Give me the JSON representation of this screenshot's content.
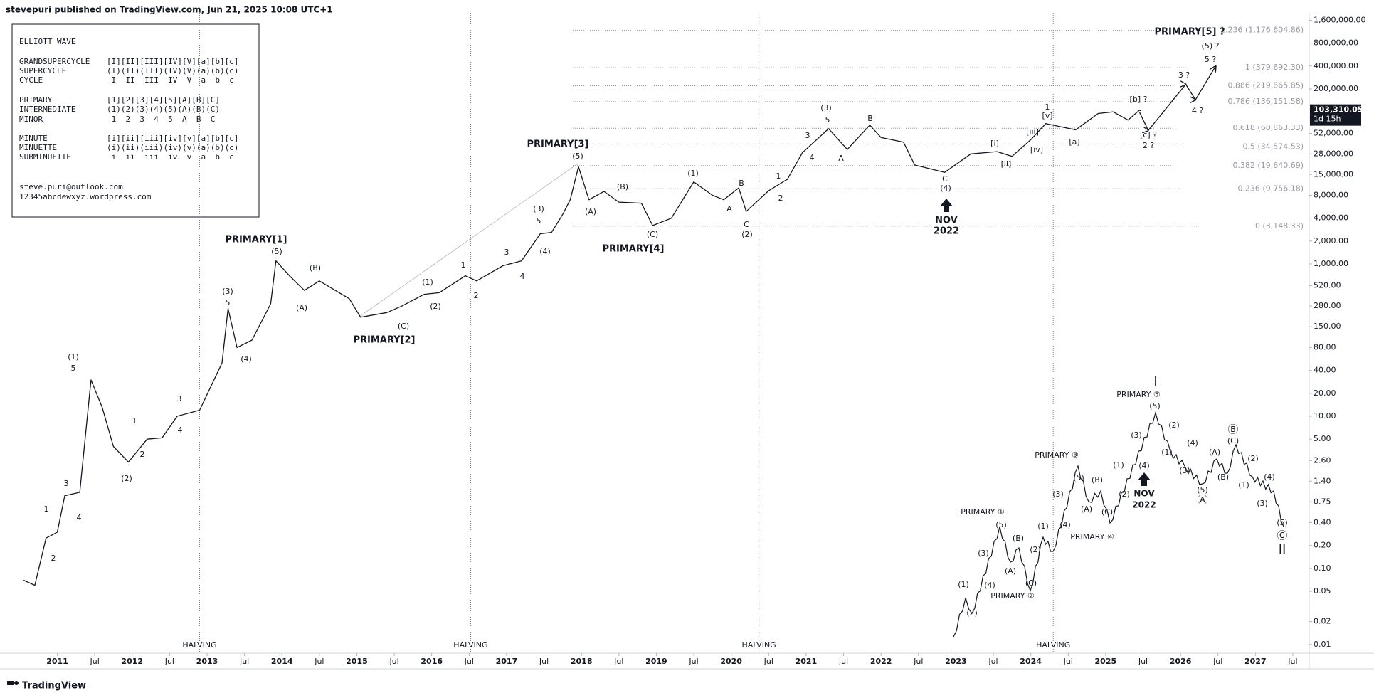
{
  "header": "stevepuri published on TradingView.com, Jun 21, 2025 10:08 UTC+1",
  "footer": "TradingView",
  "legend": {
    "title": "ELLIOTT WAVE",
    "rows": [
      [
        "GRANDSUPERCYCLE",
        "[I][II][III][IV][V][a][b][c]"
      ],
      [
        "SUPERCYCLE",
        "(I)(II)(III)(IV)(V)(a)(b)(c)"
      ],
      [
        "CYCLE",
        " I  II  III  IV  V  a  b  c"
      ],
      [
        "PRIMARY",
        "[1][2][3][4][5][A][B][C]"
      ],
      [
        "INTERMEDIATE",
        "(1)(2)(3)(4)(5)(A)(B)(C)"
      ],
      [
        "MINOR",
        " 1  2  3  4  5  A  B  C"
      ],
      [
        "MINUTE",
        "[i][ii][iii][iv][v][a][b][c]"
      ],
      [
        "MINUETTE",
        "(i)(ii)(iii)(iv)(v)(a)(b)(c)"
      ],
      [
        "SUBMINUETTE",
        " i  ii  iii  iv  v  a  b  c"
      ]
    ],
    "contact": [
      "steve.puri@outlook.com",
      "12345abcdewxyz.wordpress.com"
    ]
  },
  "chart_data": {
    "type": "line",
    "log_scale": true,
    "color": "#131722",
    "x": [
      2010.55,
      2010.7,
      2010.85,
      2011.0,
      2011.1,
      2011.3,
      2011.45,
      2011.6,
      2011.75,
      2011.95,
      2012.2,
      2012.4,
      2012.6,
      2012.9,
      2013.2,
      2013.28,
      2013.4,
      2013.6,
      2013.85,
      2013.92,
      2014.1,
      2014.3,
      2014.5,
      2014.9,
      2015.05,
      2015.4,
      2015.6,
      2015.9,
      2016.1,
      2016.45,
      2016.6,
      2016.95,
      2017.2,
      2017.45,
      2017.6,
      2017.75,
      2017.85,
      2017.96,
      2018.1,
      2018.3,
      2018.5,
      2018.8,
      2018.95,
      2019.2,
      2019.5,
      2019.75,
      2019.9,
      2020.1,
      2020.2,
      2020.5,
      2020.75,
      2020.95,
      2021.3,
      2021.55,
      2021.85,
      2022.0,
      2022.3,
      2022.45,
      2022.85,
      2023.2,
      2023.55,
      2023.75,
      2024.0,
      2024.2,
      2024.6,
      2024.9,
      2025.1,
      2025.3,
      2025.45,
      2025.47
    ],
    "values": [
      0.07,
      0.06,
      0.25,
      0.3,
      0.9,
      1.0,
      30,
      13,
      4,
      2.5,
      5,
      5.2,
      10,
      12,
      50,
      260,
      80,
      100,
      300,
      1100,
      700,
      450,
      600,
      350,
      200,
      230,
      280,
      400,
      420,
      700,
      600,
      950,
      1100,
      2500,
      2600,
      4500,
      7000,
      19000,
      7000,
      9000,
      6500,
      6300,
      3200,
      4000,
      12000,
      8000,
      7000,
      10000,
      4900,
      9200,
      13000,
      29000,
      60000,
      32000,
      67000,
      46000,
      40000,
      20000,
      16000,
      28000,
      30000,
      26000,
      43000,
      70000,
      58000,
      95000,
      100000,
      78000,
      105000,
      103310.05
    ],
    "projection_x": [
      2025.45,
      2025.57,
      2026.07,
      2026.2,
      2026.47
    ],
    "projection_values": [
      100000,
      57000,
      230000,
      144000,
      400000
    ],
    "last_price": {
      "value": 103310.05,
      "label": "103,310.05"
    },
    "countdown": "1d 15h",
    "xlim": [
      2010.33,
      2027.7
    ],
    "ylim": [
      0.0077,
      2000000
    ],
    "xticks": [
      2011,
      {
        "value": 2011.5,
        "label": "Jul"
      },
      2012,
      {
        "value": 2012.5,
        "label": "Jul"
      },
      2013,
      {
        "value": 2013.5,
        "label": "Jul"
      },
      2014,
      {
        "value": 2014.5,
        "label": "Jul"
      },
      2015,
      {
        "value": 2015.5,
        "label": "Jul"
      },
      2016,
      {
        "value": 2016.5,
        "label": "Jul"
      },
      2017,
      {
        "value": 2017.5,
        "label": "Jul"
      },
      2018,
      {
        "value": 2018.5,
        "label": "Jul"
      },
      2019,
      {
        "value": 2019.5,
        "label": "Jul"
      },
      2020,
      {
        "value": 2020.5,
        "label": "Jul"
      },
      2021,
      {
        "value": 2021.5,
        "label": "Jul"
      },
      2022,
      {
        "value": 2022.5,
        "label": "Jul"
      },
      2023,
      {
        "value": 2023.5,
        "label": "Jul"
      },
      2024,
      {
        "value": 2024.5,
        "label": "Jul"
      },
      2025,
      {
        "value": 2025.5,
        "label": "Jul"
      },
      2026,
      {
        "value": 2026.5,
        "label": "Jul"
      },
      2027,
      {
        "value": 2027.5,
        "label": "Jul"
      }
    ],
    "yticks": [
      {
        "value": 1600000,
        "label": "1,600,000.00"
      },
      {
        "value": 800000,
        "label": "800,000.00"
      },
      {
        "value": 400000,
        "label": "400,000.00"
      },
      {
        "value": 200000,
        "label": "200,000.00"
      },
      {
        "value": 52000,
        "label": "52,000.00"
      },
      {
        "value": 28000,
        "label": "28,000.00"
      },
      {
        "value": 15000,
        "label": "15,000.00"
      },
      {
        "value": 8000,
        "label": "8,000.00"
      },
      {
        "value": 4000,
        "label": "4,000.00"
      },
      {
        "value": 2000,
        "label": "2,000.00"
      },
      {
        "value": 1000,
        "label": "1,000.00"
      },
      {
        "value": 520,
        "label": "520.00"
      },
      {
        "value": 280,
        "label": "280.00"
      },
      {
        "value": 150,
        "label": "150.00"
      },
      {
        "value": 80,
        "label": "80.00"
      },
      {
        "value": 40,
        "label": "40.00"
      },
      {
        "value": 20,
        "label": "20.00"
      },
      {
        "value": 10,
        "label": "10.00"
      },
      {
        "value": 5,
        "label": "5.00"
      },
      {
        "value": 2.6,
        "label": "2.60"
      },
      {
        "value": 1.4,
        "label": "1.40"
      },
      {
        "value": 0.75,
        "label": "0.75"
      },
      {
        "value": 0.4,
        "label": "0.40"
      },
      {
        "value": 0.2,
        "label": "0.20"
      },
      {
        "value": 0.1,
        "label": "0.10"
      },
      {
        "value": 0.05,
        "label": "0.05"
      },
      {
        "value": 0.02,
        "label": "0.02"
      },
      {
        "value": 0.01,
        "label": "0.01"
      }
    ],
    "fib_levels": [
      {
        "value": 1176604.86,
        "label": "1.236 (1,176,604.86)"
      },
      {
        "value": 379692.3,
        "label": "1 (379,692.30)"
      },
      {
        "value": 219865.85,
        "label": "0.886 (219,865.85)"
      },
      {
        "value": 136151.58,
        "label": "0.786 (136,151.58)"
      },
      {
        "value": 60863.33,
        "label": "0.618 (60,863.33)"
      },
      {
        "value": 34574.53,
        "label": "0.5 (34,574.53)"
      },
      {
        "value": 19640.69,
        "label": "0.382 (19,640.69)"
      },
      {
        "value": 9756.18,
        "label": "0.236 (9,756.18)"
      },
      {
        "value": 3148.33,
        "label": "0 (3,148.33)"
      }
    ],
    "halving_x": [
      2012.9,
      2016.52,
      2020.37,
      2024.3
    ],
    "halving_label": "HALVING",
    "wave_labels": [
      "(1)",
      "5",
      "1",
      "3",
      "4",
      "2",
      "(2)",
      "1",
      "3",
      "2",
      "4",
      "(3)",
      "5",
      "(4)",
      "PRIMARY[1]",
      "(5)",
      "(B)",
      "(A)",
      "PRIMARY[2]",
      "(C)",
      "(1)",
      "(2)",
      "1",
      "2",
      "3",
      "4",
      "(3)",
      "5",
      "(4)",
      "PRIMARY[3]",
      "(5)",
      "(A)",
      "(B)",
      "(C)",
      "PRIMARY[4]",
      "(1)",
      "A",
      "B",
      "C",
      "(2)",
      "1",
      "2",
      "3",
      "4",
      "(3)",
      "5",
      "A",
      "B",
      "C",
      "(4)",
      "NOV",
      "2022",
      "[i]",
      "[ii]",
      "[iii]",
      "[iv]",
      "1",
      "[v]",
      "[a]",
      "[b] ?",
      "[c] ?",
      "2 ?",
      "3 ?",
      "4 ?",
      "(5) ?",
      "5 ?",
      "PRIMARY[5] ?"
    ],
    "inset_labels": [
      "I",
      "PRIMARY ⑤",
      "(5)",
      "(2)",
      "(1)",
      "(3)",
      "(4)",
      "NOV",
      "2022",
      "(4)",
      "(3)",
      "(A)",
      "(B)",
      "Ⓑ",
      "(C)",
      "(2)",
      "(1)",
      "(4)",
      "(3)",
      "(5)",
      "Ⓒ",
      "II",
      "(5)",
      "Ⓐ",
      "(1)",
      "(2)",
      "(3)",
      "(C)",
      "PRIMARY ④",
      "(5)",
      "(B)",
      "(A)",
      "PRIMARY ③",
      "(4)",
      "(1)",
      "(2)",
      "PRIMARY ①",
      "(5)",
      "(3)",
      "(B)",
      "(4)",
      "(A)",
      "(C)",
      "PRIMARY ②",
      "(1)",
      "(2)"
    ]
  }
}
